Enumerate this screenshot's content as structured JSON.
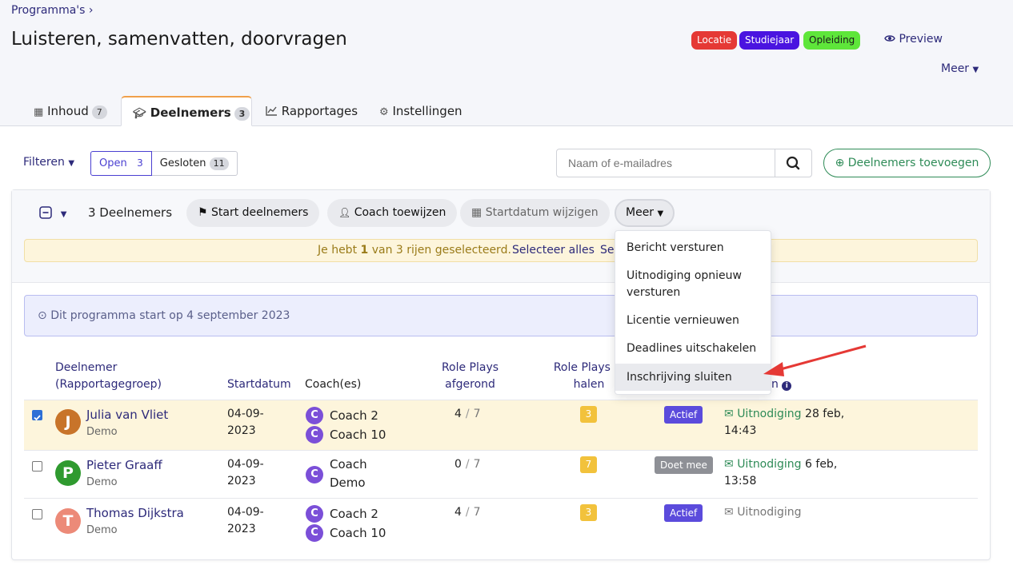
{
  "breadcrumb": "Programma's",
  "title": "Luisteren, samenvatten, doorvragen",
  "badges": {
    "locatie": "Locatie",
    "studiejaar": "Studiejaar",
    "opleiding": "Opleiding"
  },
  "preview": "Preview",
  "meer_top": "Meer",
  "tabs": [
    {
      "label": "Inhoud",
      "count": "7"
    },
    {
      "label": "Deelnemers",
      "count": "3"
    },
    {
      "label": "Rapportages"
    },
    {
      "label": "Instellingen"
    }
  ],
  "filter": {
    "label": "Filteren",
    "open_label": "Open",
    "open_count": "3",
    "closed_label": "Gesloten",
    "closed_count": "11"
  },
  "search": {
    "placeholder": "Naam of e-mailadres"
  },
  "add_button": "Deelnemers toevoegen",
  "toolbar": {
    "count": "3 Deelnemers",
    "start": "Start deelnemers",
    "coach": "Coach toewijzen",
    "startdatum": "Startdatum wijzigen",
    "meer": "Meer"
  },
  "selection": {
    "pre": "Je hebt ",
    "n": "1",
    "post": " van 3 rijen geselecteerd.",
    "select_all": "Selecteer alles",
    "sel_cut": "Sel"
  },
  "info": "Dit programma start op 4 september 2023",
  "columns": {
    "deelnemer": "Deelnemer",
    "groep": "(Rapportagegroep)",
    "startdatum": "Startdatum",
    "coach": "Coach(es)",
    "rp_af_1": "Role Plays",
    "rp_af_2": "afgerond",
    "rp_in_1": "Role Plays in",
    "rp_in_2": "halen",
    "status_tail": "n"
  },
  "rows": [
    {
      "initial": "J",
      "name": "Julia van Vliet",
      "group": "Demo",
      "date1": "04-09-",
      "date2": "2023",
      "coach1": "Coach 2",
      "coach2": "Coach 10",
      "done": "4",
      "total": "7",
      "pending": "3",
      "status": "Actief",
      "invite": "Uitnodiging",
      "inv_date": "28 feb,",
      "inv_time": "14:43",
      "checked": true
    },
    {
      "initial": "P",
      "name": "Pieter Graaff",
      "group": "Demo",
      "date1": "04-09-",
      "date2": "2023",
      "coach1": "Coach",
      "coach2": "Demo",
      "done": "0",
      "total": "7",
      "pending": "7",
      "status": "Doet mee",
      "invite": "Uitnodiging",
      "inv_date": "6 feb,",
      "inv_time": "13:58",
      "checked": false
    },
    {
      "initial": "T",
      "name": "Thomas Dijkstra",
      "group": "Demo",
      "date1": "04-09-",
      "date2": "2023",
      "coach1": "Coach 2",
      "coach2": "Coach 10",
      "done": "4",
      "total": "7",
      "pending": "3",
      "status": "Actief",
      "invite": "Uitnodiging",
      "checked": false
    }
  ],
  "dropdown": [
    "Bericht versturen",
    "Uitnodiging opnieuw",
    "versturen",
    "Licentie vernieuwen",
    "Deadlines uitschakelen",
    "Inschrijving sluiten"
  ],
  "colors": {
    "accent": "#2d2a7a",
    "green": "#2e8b57",
    "active": "#5b4bdc",
    "arrow": "#e53935"
  }
}
